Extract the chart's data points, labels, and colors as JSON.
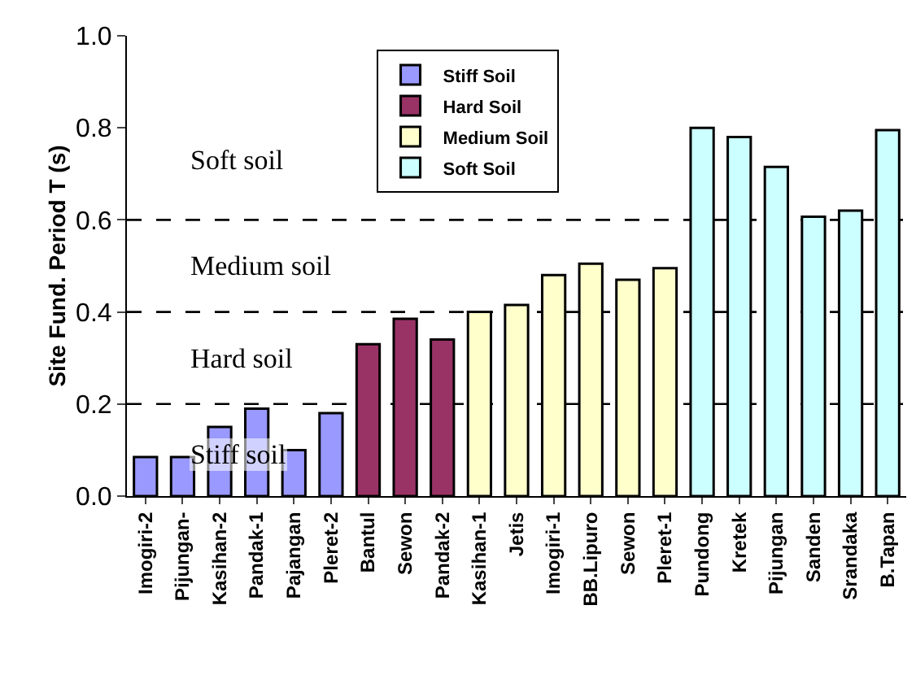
{
  "chart_data": {
    "type": "bar",
    "ylabel": "Site Fund. Period T (s)",
    "categories": [
      "Imogiri-2",
      "Pijungan-",
      "Kasihan-2",
      "Pandak-1",
      "Pajangan",
      "Pleret-2",
      "Bantul",
      "Sewon",
      "Pandak-2",
      "Kasihan-1",
      "Jetis",
      "Imogiri-1",
      "BB.Lipuro",
      "Sewon",
      "Pleret-1",
      "Pundong",
      "Kretek",
      "Pijungan",
      "Sanden",
      "Srandaka",
      "B.Tapan"
    ],
    "series": [
      {
        "name": "Stiff Soil",
        "color": "#9999ff",
        "values": [
          0.085,
          0.085,
          0.15,
          0.19,
          0.1,
          0.18,
          null,
          null,
          null,
          null,
          null,
          null,
          null,
          null,
          null,
          null,
          null,
          null,
          null,
          null,
          null
        ]
      },
      {
        "name": "Hard Soil",
        "color": "#993366",
        "values": [
          null,
          null,
          null,
          null,
          null,
          null,
          0.33,
          0.385,
          0.34,
          null,
          null,
          null,
          null,
          null,
          null,
          null,
          null,
          null,
          null,
          null,
          null
        ]
      },
      {
        "name": "Medium Soil",
        "color": "#ffffcc",
        "values": [
          null,
          null,
          null,
          null,
          null,
          null,
          null,
          null,
          null,
          0.4,
          0.415,
          0.48,
          0.505,
          0.47,
          0.495,
          null,
          null,
          null,
          null,
          null,
          null
        ]
      },
      {
        "name": "Soft Soil",
        "color": "#ccffff",
        "values": [
          null,
          null,
          null,
          null,
          null,
          null,
          null,
          null,
          null,
          null,
          null,
          null,
          null,
          null,
          null,
          0.8,
          0.78,
          0.715,
          0.607,
          0.62,
          0.795
        ]
      }
    ],
    "ylim": [
      0,
      1
    ],
    "yticks": [
      {
        "value": 0,
        "label": "0.0"
      },
      {
        "value": 0.2,
        "label": "0.2"
      },
      {
        "value": 0.4,
        "label": "0.4"
      },
      {
        "value": 0.6,
        "label": "0.6"
      },
      {
        "value": 0.8,
        "label": "0.8"
      },
      {
        "value": 1,
        "label": "1.0"
      }
    ],
    "grid": false,
    "legend": "top",
    "ref_lines": [
      {
        "axis": "y",
        "value": 0.2,
        "line_style": "dashed",
        "color": "#000000"
      },
      {
        "axis": "y",
        "value": 0.4,
        "line_style": "dashed",
        "color": "#000000"
      },
      {
        "axis": "y",
        "value": 0.6,
        "line_style": "dashed",
        "color": "#000000"
      }
    ],
    "annotations": [
      "Soft soil",
      "Medium soil",
      "Hard soil",
      "Stiff soil"
    ]
  }
}
